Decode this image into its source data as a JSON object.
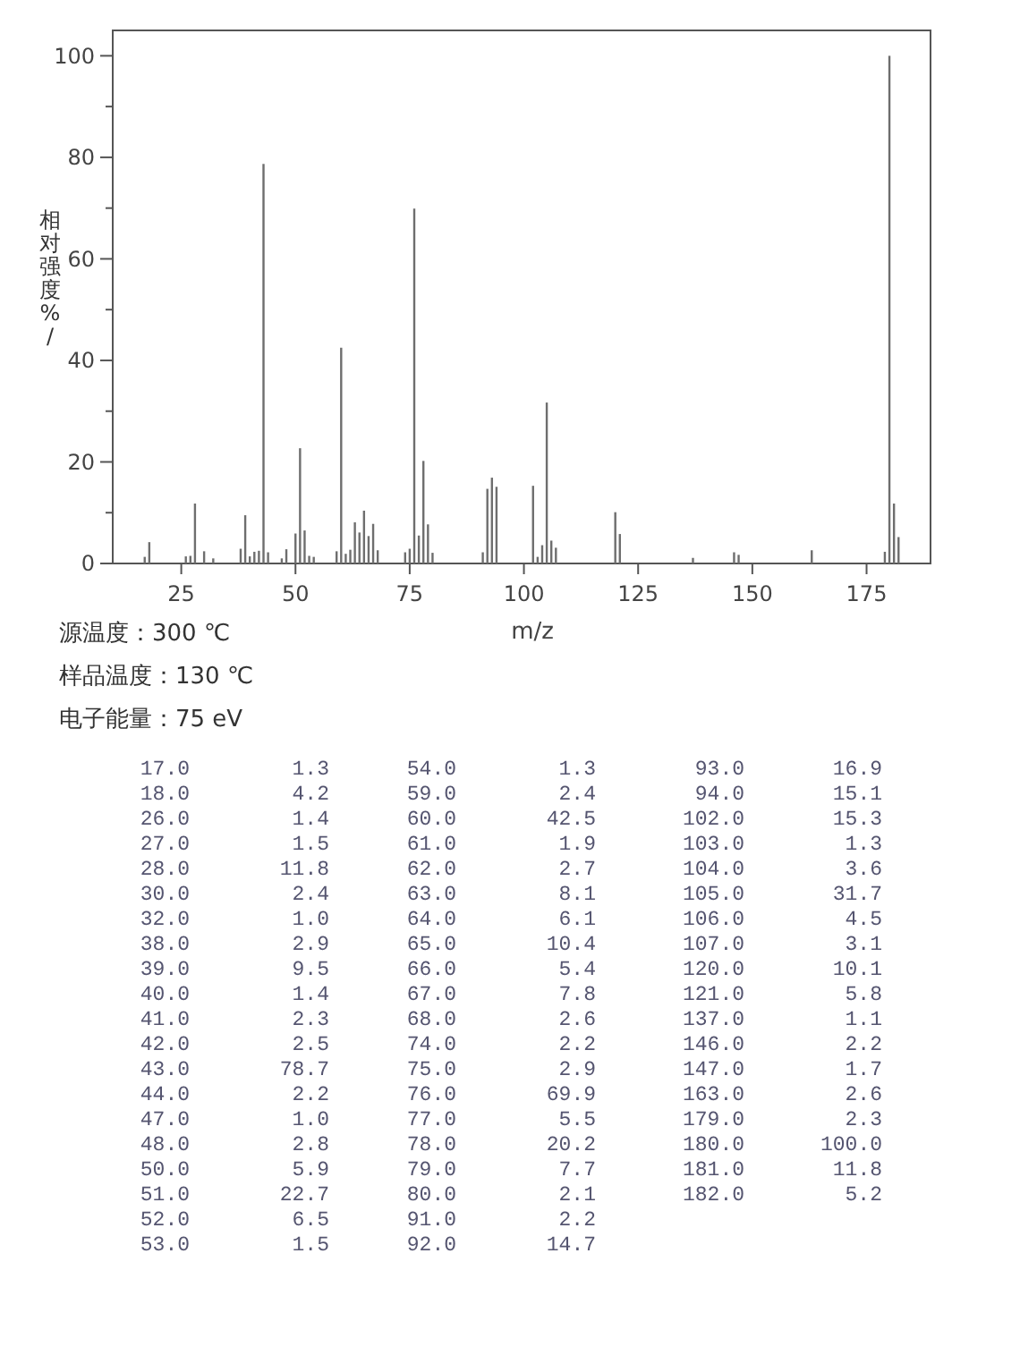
{
  "chart_data": [
    {
      "type": "bar",
      "xlabel": "m/z",
      "ylabel": "相对强度%/",
      "x": [
        17,
        18,
        26,
        27,
        28,
        30,
        32,
        38,
        39,
        40,
        41,
        42,
        43,
        44,
        47,
        48,
        50,
        51,
        52,
        53,
        54,
        59,
        60,
        61,
        62,
        63,
        64,
        65,
        66,
        67,
        68,
        74,
        75,
        76,
        77,
        78,
        79,
        80,
        91,
        92,
        93,
        94,
        102,
        103,
        104,
        105,
        106,
        107,
        120,
        121,
        137,
        146,
        147,
        163,
        179,
        180,
        181,
        182
      ],
      "values": [
        1.3,
        4.2,
        1.4,
        1.5,
        11.8,
        2.4,
        1.0,
        2.9,
        9.5,
        1.4,
        2.3,
        2.5,
        78.7,
        2.2,
        1.0,
        2.8,
        5.9,
        22.7,
        6.5,
        1.5,
        1.3,
        2.4,
        42.5,
        1.9,
        2.7,
        8.1,
        6.1,
        10.4,
        5.4,
        7.8,
        2.6,
        2.2,
        2.9,
        69.9,
        5.5,
        20.2,
        7.7,
        2.1,
        2.2,
        14.7,
        16.9,
        15.1,
        15.3,
        1.3,
        3.6,
        31.7,
        4.5,
        3.1,
        10.1,
        5.8,
        1.1,
        2.2,
        1.7,
        2.6,
        2.3,
        100.0,
        11.8,
        5.2
      ],
      "color": "#6e6e6e",
      "xlim": [
        10,
        189
      ],
      "xticks": [
        25,
        50,
        75,
        100,
        125,
        150,
        175
      ],
      "ylim": [
        0,
        105
      ],
      "yticks": [
        0,
        {
          "value": 10,
          "label": null
        },
        20,
        {
          "value": 30,
          "label": null
        },
        40,
        {
          "value": 50,
          "label": null
        },
        60,
        {
          "value": 70,
          "label": null
        },
        80,
        {
          "value": 90,
          "label": null
        },
        100
      ],
      "grid": false,
      "annotations": [
        "源温度：300 ℃",
        "样品温度：130 ℃",
        "电子能量：75 eV"
      ]
    },
    {
      "type": "other",
      "annotations": [
        "17.0",
        "1.3",
        "18.0",
        "4.2",
        "26.0",
        "1.4",
        "27.0",
        "1.5",
        "28.0",
        "11.8",
        "30.0",
        "2.4",
        "32.0",
        "1.0",
        "38.0",
        "2.9",
        "39.0",
        "9.5",
        "40.0",
        "1.4",
        "41.0",
        "2.3",
        "42.0",
        "2.5",
        "43.0",
        "78.7",
        "44.0",
        "2.2",
        "47.0",
        "1.0",
        "48.0",
        "2.8",
        "50.0",
        "5.9",
        "51.0",
        "22.7",
        "52.0",
        "6.5",
        "53.0",
        "1.5",
        "54.0",
        "1.3",
        "59.0",
        "2.4",
        "60.0",
        "42.5",
        "61.0",
        "1.9",
        "62.0",
        "2.7",
        "63.0",
        "8.1",
        "64.0",
        "6.1",
        "65.0",
        "10.4",
        "66.0",
        "5.4",
        "67.0",
        "7.8",
        "68.0",
        "2.6",
        "74.0",
        "2.2",
        "75.0",
        "2.9",
        "76.0",
        "69.9",
        "77.0",
        "5.5",
        "78.0",
        "20.2",
        "79.0",
        "7.7",
        "80.0",
        "2.1",
        "91.0",
        "2.2",
        "92.0",
        "14.7",
        "93.0",
        "16.9",
        "94.0",
        "15.1",
        "102.0",
        "15.3",
        "103.0",
        "1.3",
        "104.0",
        "3.6",
        "105.0",
        "31.7",
        "106.0",
        "4.5",
        "107.0",
        "3.1",
        "120.0",
        "10.1",
        "121.0",
        "5.8",
        "137.0",
        "1.1",
        "146.0",
        "2.2",
        "147.0",
        "1.7",
        "163.0",
        "2.6",
        "179.0",
        "2.3",
        "180.0",
        "100.0",
        "181.0",
        "11.8",
        "182.0",
        "5.2"
      ]
    }
  ]
}
